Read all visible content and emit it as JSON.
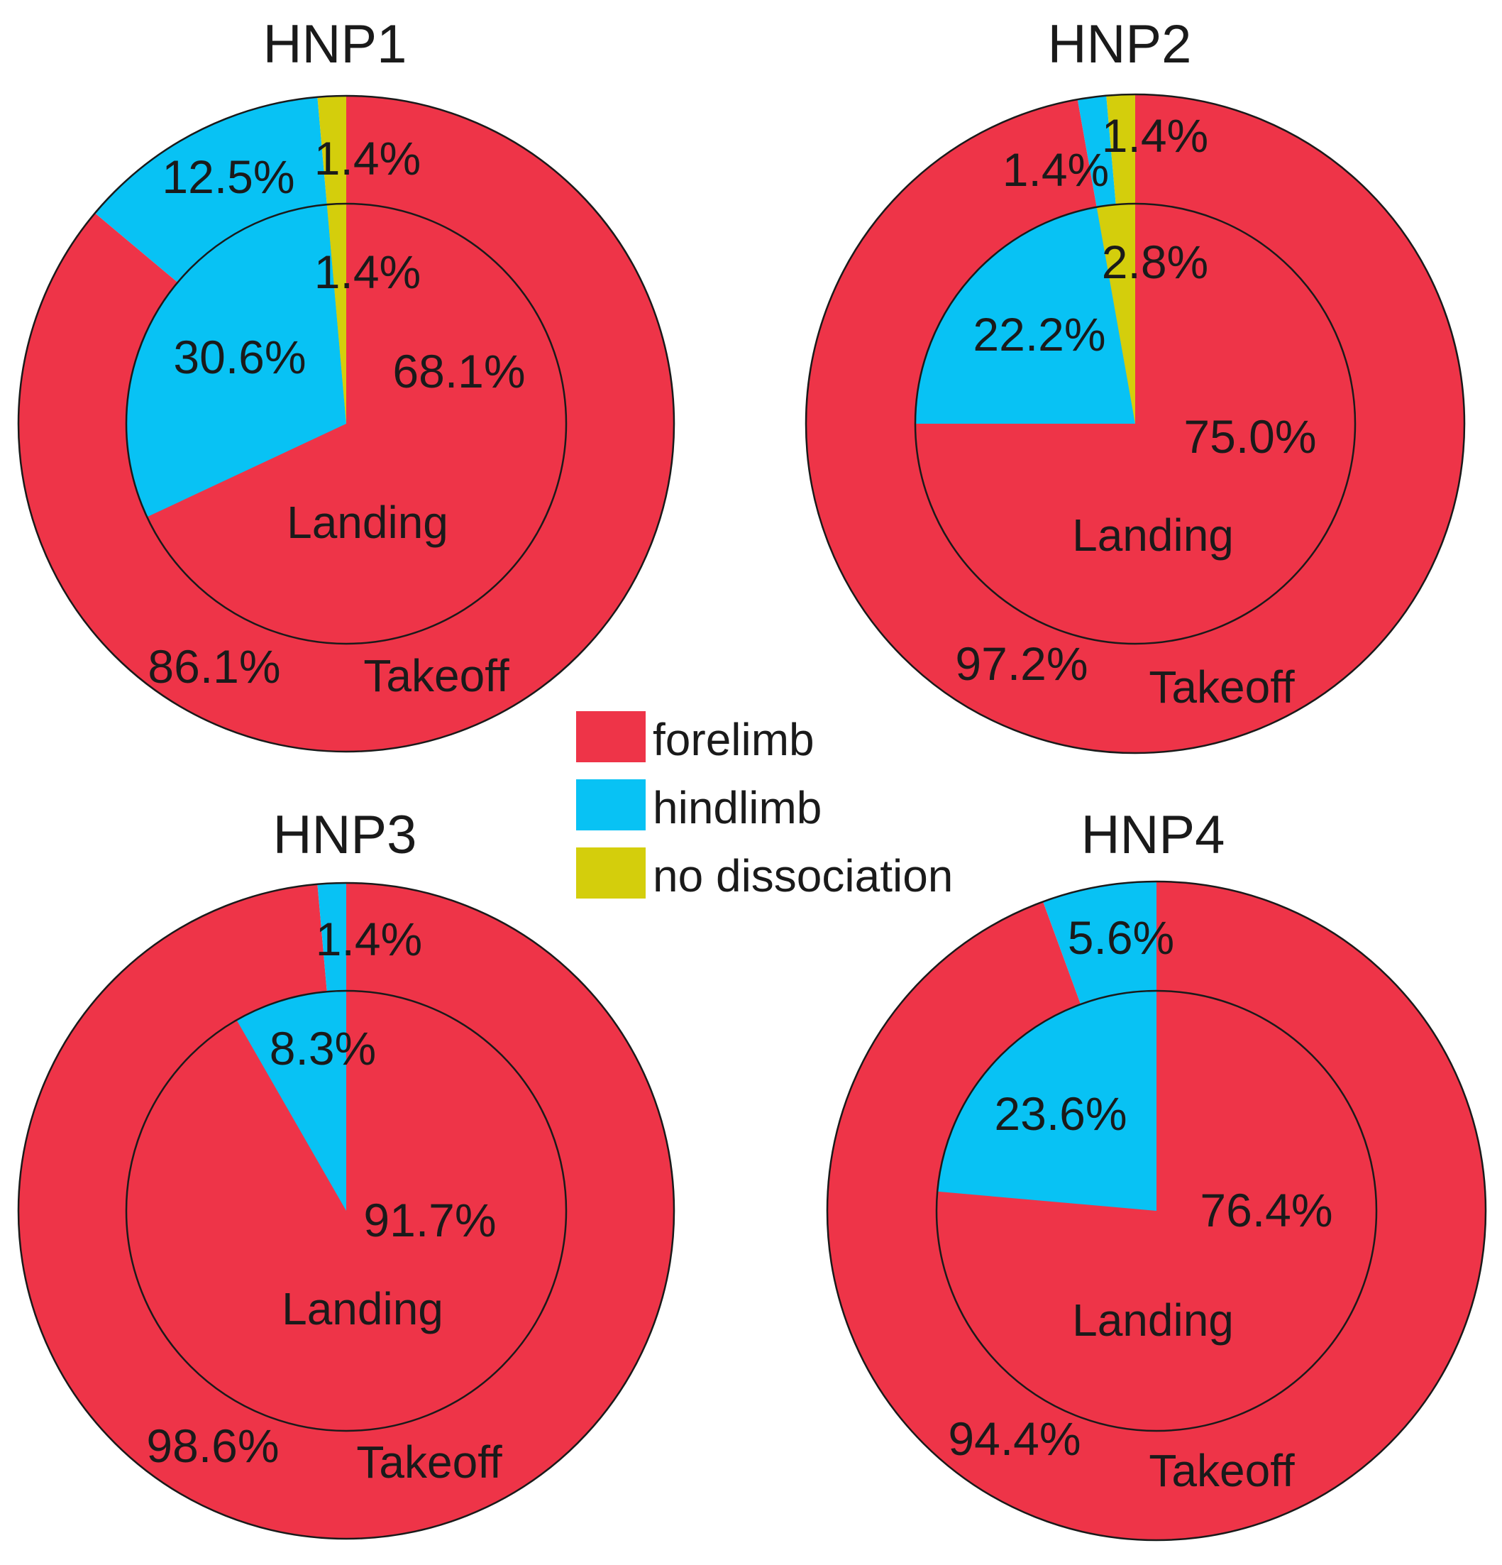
{
  "colors": {
    "forelimb": "#EE3448",
    "hindlimb": "#08C2F4",
    "no dissociation": "#D4CE0C",
    "outline": "#1a1a1a"
  },
  "legend": {
    "items": [
      {
        "key": "forelimb",
        "label": "forelimb"
      },
      {
        "key": "hindlimb",
        "label": "hindlimb"
      },
      {
        "key": "no dissociation",
        "label": "no dissociation"
      }
    ]
  },
  "chart_data": [
    {
      "type": "pie",
      "title": "HNP1",
      "inner_label": "Landing",
      "outer_label": "Takeoff",
      "rings": [
        {
          "name": "Landing",
          "categories": [
            "forelimb",
            "hindlimb",
            "no dissociation"
          ],
          "values": [
            68.1,
            30.6,
            1.4
          ],
          "labels": [
            "68.1%",
            "30.6%",
            "1.4%"
          ]
        },
        {
          "name": "Takeoff",
          "categories": [
            "forelimb",
            "hindlimb",
            "no dissociation"
          ],
          "values": [
            86.1,
            12.5,
            1.4
          ],
          "labels": [
            "86.1%",
            "12.5%",
            "1.4%"
          ]
        }
      ]
    },
    {
      "type": "pie",
      "title": "HNP2",
      "inner_label": "Landing",
      "outer_label": "Takeoff",
      "rings": [
        {
          "name": "Landing",
          "categories": [
            "forelimb",
            "hindlimb",
            "no dissociation"
          ],
          "values": [
            75.0,
            22.2,
            2.8
          ],
          "labels": [
            "75.0%",
            "22.2%",
            "2.8%"
          ]
        },
        {
          "name": "Takeoff",
          "categories": [
            "forelimb",
            "hindlimb",
            "no dissociation"
          ],
          "values": [
            97.2,
            1.4,
            1.4
          ],
          "labels": [
            "97.2%",
            "1.4%",
            "1.4%"
          ]
        }
      ]
    },
    {
      "type": "pie",
      "title": "HNP3",
      "inner_label": "Landing",
      "outer_label": "Takeoff",
      "rings": [
        {
          "name": "Landing",
          "categories": [
            "forelimb",
            "hindlimb"
          ],
          "values": [
            91.7,
            8.3
          ],
          "labels": [
            "91.7%",
            "8.3%"
          ]
        },
        {
          "name": "Takeoff",
          "categories": [
            "forelimb",
            "hindlimb"
          ],
          "values": [
            98.6,
            1.4
          ],
          "labels": [
            "98.6%",
            "1.4%"
          ]
        }
      ]
    },
    {
      "type": "pie",
      "title": "HNP4",
      "inner_label": "Landing",
      "outer_label": "Takeoff",
      "rings": [
        {
          "name": "Landing",
          "categories": [
            "forelimb",
            "hindlimb"
          ],
          "values": [
            76.4,
            23.6
          ],
          "labels": [
            "76.4%",
            "23.6%"
          ]
        },
        {
          "name": "Takeoff",
          "categories": [
            "forelimb",
            "hindlimb"
          ],
          "values": [
            94.4,
            5.6
          ],
          "labels": [
            "94.4%",
            "5.6%"
          ]
        }
      ]
    }
  ]
}
